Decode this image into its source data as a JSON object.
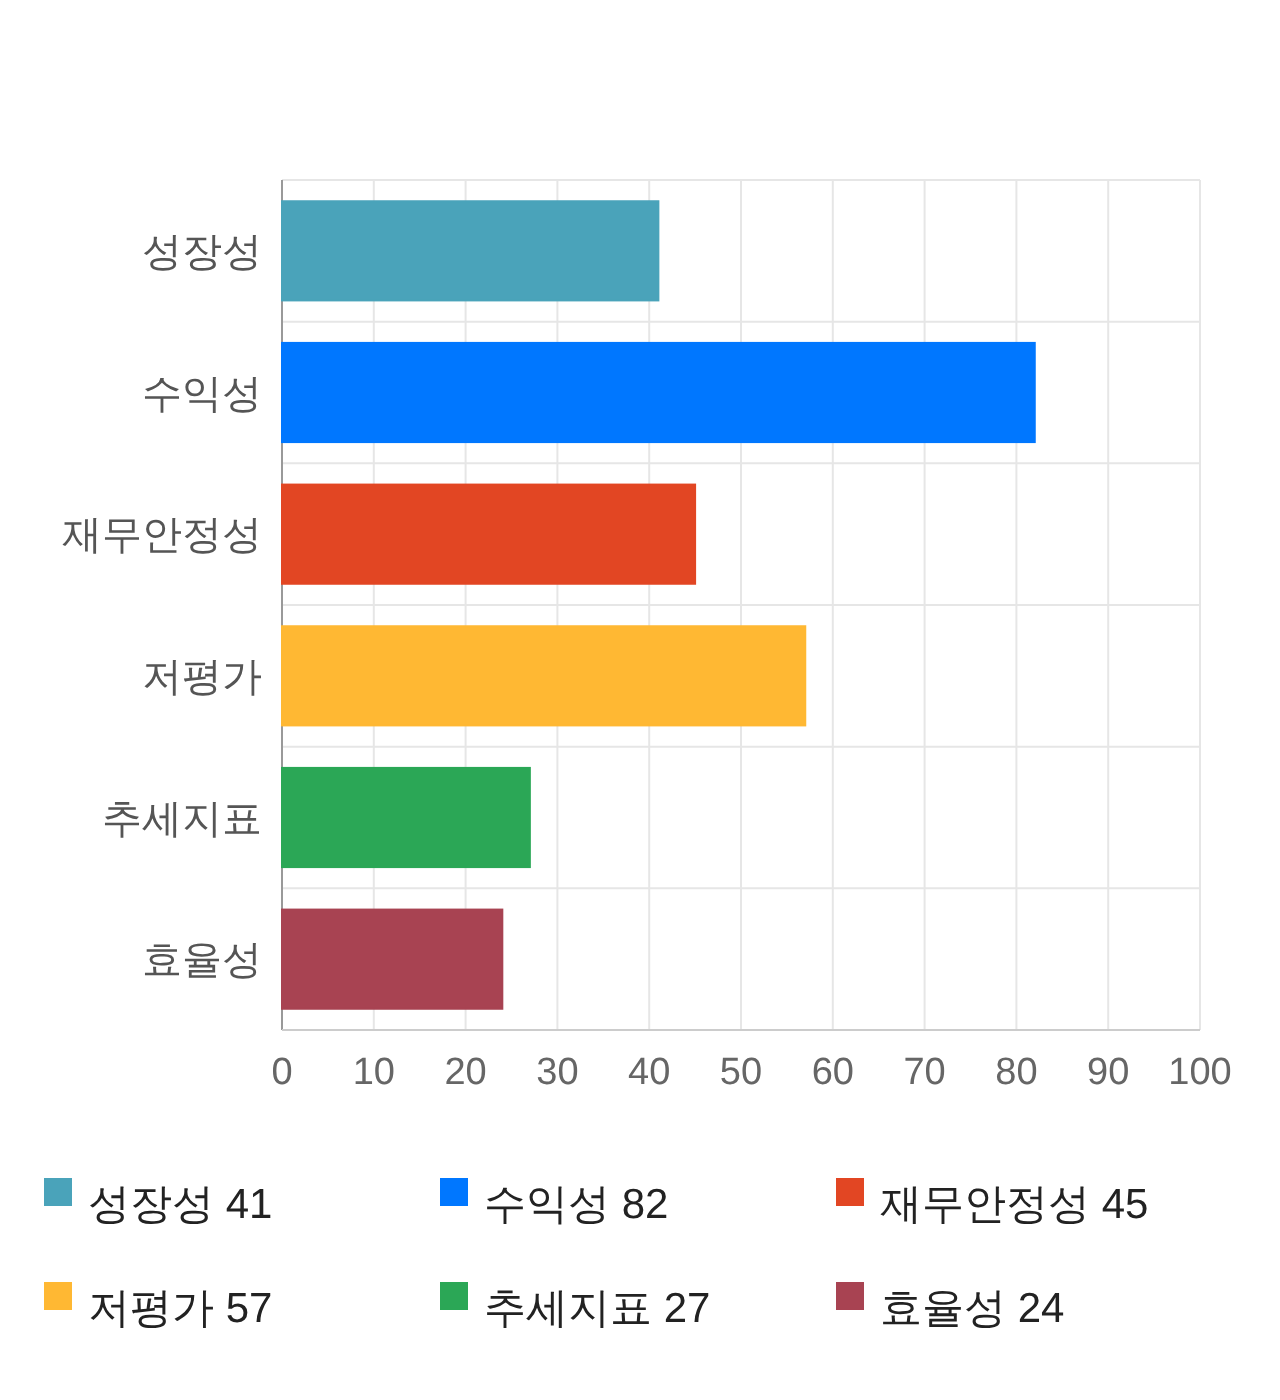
{
  "chart_data": {
    "type": "bar",
    "orientation": "horizontal",
    "categories": [
      "성장성",
      "수익성",
      "재무안정성",
      "저평가",
      "추세지표",
      "효율성"
    ],
    "series": [
      {
        "name": "성장성 41",
        "color": "#4aa3ba",
        "values": [
          41,
          null,
          null,
          null,
          null,
          null
        ]
      },
      {
        "name": "수익성 82",
        "color": "#0077ff",
        "values": [
          null,
          82,
          null,
          null,
          null,
          null
        ]
      },
      {
        "name": "재무안정성 45",
        "color": "#e24623",
        "values": [
          null,
          null,
          45,
          null,
          null,
          null
        ]
      },
      {
        "name": "저평가 57",
        "color": "#ffb833",
        "values": [
          null,
          null,
          null,
          57,
          null,
          null
        ]
      },
      {
        "name": "추세지표 27",
        "color": "#2ba756",
        "values": [
          null,
          null,
          null,
          null,
          27,
          null
        ]
      },
      {
        "name": "효율성 24",
        "color": "#a84352",
        "values": [
          null,
          null,
          null,
          null,
          null,
          24
        ]
      }
    ],
    "xlim": [
      0,
      100
    ],
    "xticks": [
      0,
      10,
      20,
      30,
      40,
      50,
      60,
      70,
      80,
      90,
      100
    ],
    "grid": true,
    "legend": "bottom"
  }
}
